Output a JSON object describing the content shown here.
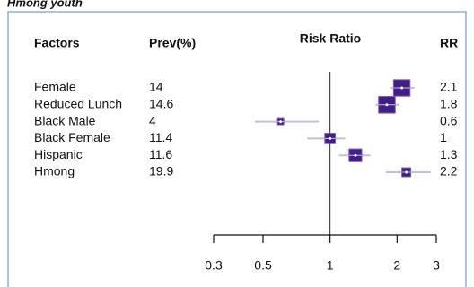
{
  "caption": "Hmong youth",
  "chart_data": {
    "type": "forest",
    "headers": {
      "factors": "Factors",
      "prev": "Prev(%)",
      "plot": "Risk Ratio",
      "rr": "RR"
    },
    "categories": [
      "Female",
      "Reduced Lunch",
      "Black Male",
      "Black Female",
      "Hispanic",
      "Hmong"
    ],
    "prevalence": [
      14,
      14.6,
      4,
      11.4,
      11.6,
      19.9
    ],
    "values": [
      2.1,
      1.8,
      0.6,
      1,
      1.3,
      2.2
    ],
    "lower": [
      1.86,
      1.6,
      0.46,
      0.79,
      1.1,
      1.78
    ],
    "upper": [
      2.39,
      2.05,
      0.89,
      1.17,
      1.52,
      2.83
    ],
    "xlim": [
      0.3,
      3
    ],
    "xticks": [
      0.3,
      0.5,
      1,
      2,
      3
    ],
    "xscale": "log",
    "reference": 1,
    "color": "#3f1f86",
    "ci_color": "#c9bddf"
  }
}
